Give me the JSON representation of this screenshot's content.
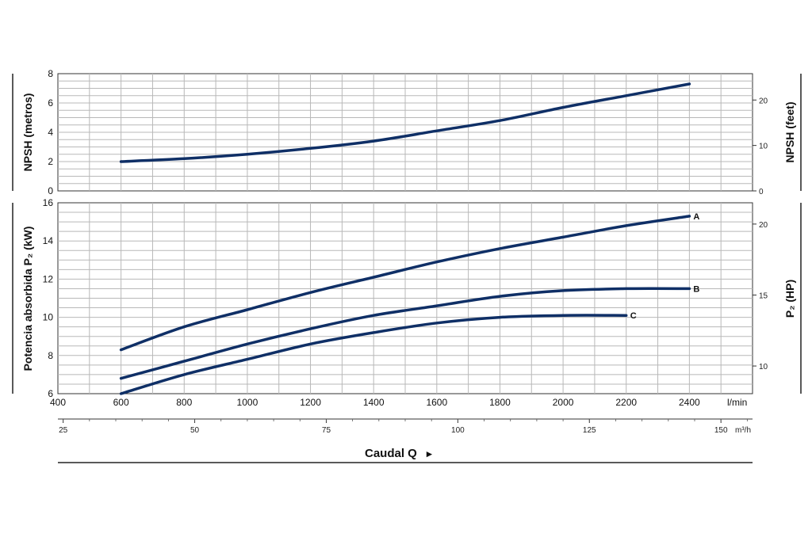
{
  "chart_data": [
    {
      "type": "line",
      "ylabel_left": "NPSH (metros)",
      "ylabel_right": "NPSH (feet)",
      "ylim": [
        0,
        8
      ],
      "yticks": [
        "0",
        "2",
        "4",
        "6",
        "8"
      ],
      "ylim_right": [
        0,
        25.8
      ],
      "yticks_right": [
        "0",
        "10",
        "20"
      ],
      "grid": true,
      "series": [
        {
          "x": [
            600,
            800,
            1000,
            1200,
            1400,
            1600,
            1800,
            2000,
            2200,
            2400
          ],
          "y": [
            2.0,
            2.2,
            2.5,
            2.9,
            3.4,
            4.1,
            4.8,
            5.7,
            6.5,
            7.3
          ]
        }
      ]
    },
    {
      "type": "line",
      "ylabel_left": "Potencia absorbida P₂ (kW)",
      "ylabel_right": "P₂ (HP)",
      "ylim": [
        6,
        16
      ],
      "yticks": [
        "6",
        "8",
        "10",
        "12",
        "14",
        "16"
      ],
      "ylim_right": [
        8.05,
        21.5
      ],
      "yticks_right": [
        "10",
        "15",
        "20"
      ],
      "grid": true,
      "series": [
        {
          "name": "A",
          "x": [
            600,
            800,
            1000,
            1200,
            1400,
            1600,
            1800,
            2000,
            2200,
            2400
          ],
          "y": [
            8.3,
            9.5,
            10.4,
            11.3,
            12.1,
            12.9,
            13.6,
            14.2,
            14.8,
            15.3
          ]
        },
        {
          "name": "B",
          "x": [
            600,
            800,
            1000,
            1200,
            1400,
            1600,
            1800,
            2000,
            2200,
            2400
          ],
          "y": [
            6.8,
            7.7,
            8.6,
            9.4,
            10.1,
            10.6,
            11.1,
            11.4,
            11.5,
            11.5
          ]
        },
        {
          "name": "C",
          "x": [
            600,
            800,
            1000,
            1200,
            1400,
            1600,
            1800,
            2000,
            2200
          ],
          "y": [
            6.0,
            7.0,
            7.8,
            8.6,
            9.2,
            9.7,
            10.0,
            10.1,
            10.1
          ]
        }
      ]
    }
  ],
  "x_axis": {
    "xlim": [
      400,
      2600
    ],
    "ticks_lmin": [
      "400",
      "600",
      "800",
      "1000",
      "1200",
      "1400",
      "1600",
      "1800",
      "2000",
      "2200",
      "2400"
    ],
    "unit_lmin": "l/min",
    "ticks_m3h": [
      "25",
      "50",
      "75",
      "100",
      "125",
      "150"
    ],
    "unit_m3h": "m³/h",
    "title": "Caudal Q",
    "title_arrow": "▸"
  }
}
